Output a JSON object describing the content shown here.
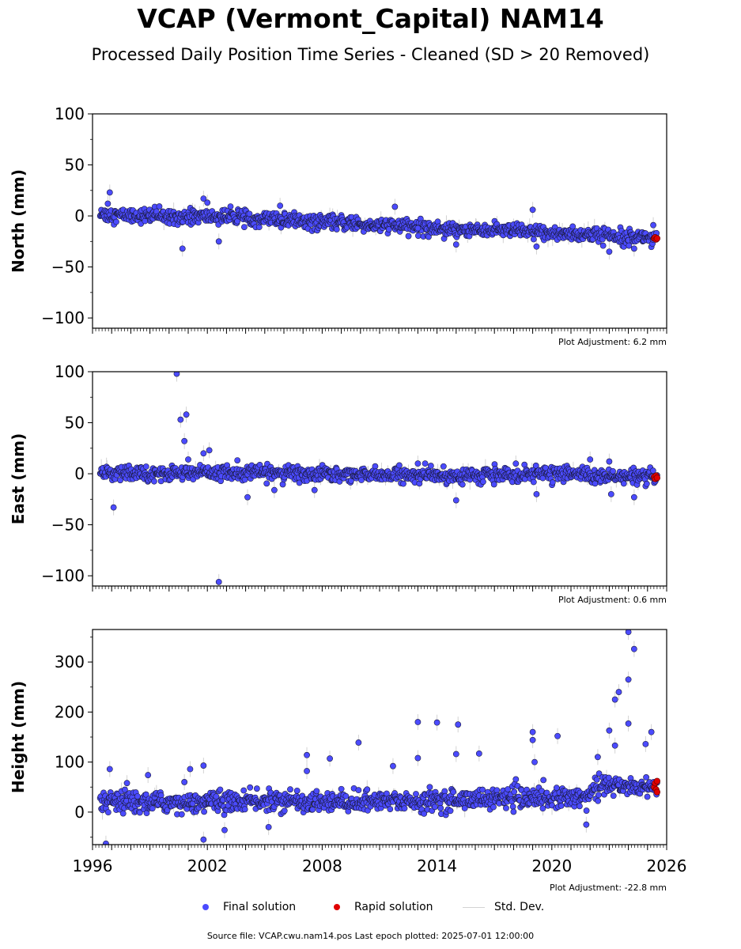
{
  "title": "VCAP (Vermont_Capital) NAM14",
  "subtitle": "Processed Daily Position Time Series - Cleaned (SD > 20 Removed)",
  "footer": "Source file: VCAP.cwu.nam14.pos  Last epoch plotted: 2025-07-01 12:00:00",
  "legend": {
    "final": "Final solution",
    "rapid": "Rapid solution",
    "std": "Std. Dev."
  },
  "colors": {
    "final": "#4b4bff",
    "final_edge": "#1a1a3a",
    "rapid": "#e00000",
    "std": "#d3d3d3"
  },
  "chart_data": [
    {
      "type": "scatter",
      "ylabel": "North (mm)",
      "ylim": [
        -110,
        100
      ],
      "yticks": [
        -100,
        -50,
        0,
        50,
        100
      ],
      "xlim": [
        1996,
        2026
      ],
      "xticks": [
        1996,
        2002,
        2008,
        2014,
        2020,
        2026
      ],
      "show_xtick_labels": false,
      "adjustment": "Plot Adjustment: 6.2 mm",
      "trend": [
        [
          1996.4,
          1
        ],
        [
          2003,
          -1
        ],
        [
          2008,
          -6
        ],
        [
          2014,
          -12
        ],
        [
          2020,
          -17
        ],
        [
          2025.5,
          -21
        ]
      ],
      "noise": 3.5,
      "outliers": [
        [
          1996.9,
          23
        ],
        [
          1996.8,
          12
        ],
        [
          2000.7,
          -32
        ],
        [
          2001.8,
          17
        ],
        [
          2002,
          13
        ],
        [
          2002.6,
          -25
        ],
        [
          2005.8,
          10
        ],
        [
          2011.8,
          9
        ],
        [
          2013,
          -12
        ],
        [
          2015,
          -28
        ],
        [
          2019,
          6
        ],
        [
          2019.2,
          -30
        ],
        [
          2023,
          -35
        ],
        [
          2024.3,
          -32
        ],
        [
          2025.3,
          -9
        ]
      ],
      "rapid": [
        [
          2025.35,
          -22
        ],
        [
          2025.4,
          -21
        ],
        [
          2025.45,
          -23
        ],
        [
          2025.5,
          -22
        ]
      ]
    },
    {
      "type": "scatter",
      "ylabel": "East (mm)",
      "ylim": [
        -110,
        100
      ],
      "yticks": [
        -100,
        -50,
        0,
        50,
        100
      ],
      "xlim": [
        1996,
        2026
      ],
      "xticks": [
        1996,
        2002,
        2008,
        2014,
        2020,
        2026
      ],
      "show_xtick_labels": false,
      "adjustment": "Plot Adjustment: 0.6 mm",
      "trend": [
        [
          1996.4,
          0
        ],
        [
          2005,
          1
        ],
        [
          2010,
          -1
        ],
        [
          2015,
          -2
        ],
        [
          2019,
          0
        ],
        [
          2021.8,
          0
        ],
        [
          2022,
          -3
        ],
        [
          2025.5,
          -4
        ]
      ],
      "noise": 3.5,
      "outliers": [
        [
          1997.1,
          -33
        ],
        [
          2000.4,
          98
        ],
        [
          2000.6,
          53
        ],
        [
          2000.9,
          58
        ],
        [
          2000.8,
          32
        ],
        [
          2001.0,
          14
        ],
        [
          2001.8,
          20
        ],
        [
          2002.1,
          23
        ],
        [
          2002.6,
          -106
        ],
        [
          2004.1,
          -23
        ],
        [
          2005.5,
          -16
        ],
        [
          2007.6,
          -16
        ],
        [
          2013,
          10
        ],
        [
          2015,
          -26
        ],
        [
          2019.2,
          -20
        ],
        [
          2022,
          14
        ],
        [
          2023,
          12
        ],
        [
          2023.1,
          -20
        ],
        [
          2024.3,
          -23
        ]
      ],
      "rapid": [
        [
          2025.35,
          -3
        ],
        [
          2025.4,
          -5
        ],
        [
          2025.45,
          -2
        ],
        [
          2025.5,
          -4
        ]
      ]
    },
    {
      "type": "scatter",
      "ylabel": "Height (mm)",
      "ylim": [
        -65,
        365
      ],
      "yticks": [
        0,
        100,
        200,
        300
      ],
      "xlim": [
        1996,
        2026
      ],
      "xticks": [
        1996,
        2002,
        2008,
        2014,
        2020,
        2026
      ],
      "show_xtick_labels": true,
      "adjustment": "Plot Adjustment: -22.8 mm",
      "trend": [
        [
          1996.4,
          18
        ],
        [
          2005,
          22
        ],
        [
          2010,
          20
        ],
        [
          2015,
          25
        ],
        [
          2021.8,
          30
        ],
        [
          2022,
          52
        ],
        [
          2025.5,
          52
        ]
      ],
      "noise": 10,
      "outliers": [
        [
          1996.7,
          -63
        ],
        [
          1996.9,
          86
        ],
        [
          1997.8,
          58
        ],
        [
          1998.9,
          74
        ],
        [
          2000.8,
          60
        ],
        [
          2001.1,
          86
        ],
        [
          2001.8,
          93
        ],
        [
          2001.8,
          -55
        ],
        [
          2002.9,
          -36
        ],
        [
          2005.2,
          -30
        ],
        [
          2007.2,
          114
        ],
        [
          2007.2,
          82
        ],
        [
          2008.4,
          107
        ],
        [
          2009.9,
          139
        ],
        [
          2011.7,
          92
        ],
        [
          2013.0,
          180
        ],
        [
          2013.0,
          108
        ],
        [
          2014,
          179
        ],
        [
          2015,
          116
        ],
        [
          2015.1,
          175
        ],
        [
          2016.2,
          117
        ],
        [
          2019,
          160
        ],
        [
          2019,
          144
        ],
        [
          2019.1,
          100
        ],
        [
          2020.3,
          152
        ],
        [
          2021.8,
          -25
        ],
        [
          2022.4,
          110
        ],
        [
          2023,
          163
        ],
        [
          2023.3,
          225
        ],
        [
          2023.5,
          240
        ],
        [
          2023.3,
          133
        ],
        [
          2024,
          360
        ],
        [
          2024,
          265
        ],
        [
          2024,
          177
        ],
        [
          2024.3,
          326
        ],
        [
          2024.9,
          136
        ],
        [
          2025.2,
          160
        ]
      ],
      "rapid": [
        [
          2025.35,
          50
        ],
        [
          2025.4,
          58
        ],
        [
          2025.45,
          45
        ],
        [
          2025.5,
          62
        ],
        [
          2025.5,
          40
        ]
      ]
    }
  ]
}
